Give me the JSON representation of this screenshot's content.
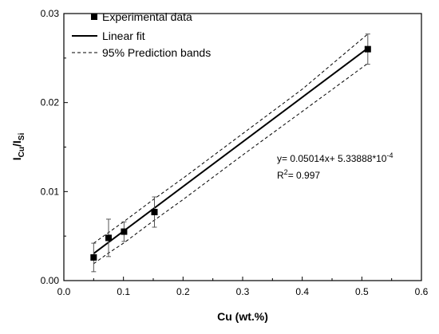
{
  "chart_data": {
    "type": "scatter",
    "xlabel": "Cu (wt.%)",
    "ylabel": {
      "main": "I",
      "sub1": "Cu",
      "sep": "/I",
      "sub2": "Si"
    },
    "xlim": [
      0.0,
      0.6
    ],
    "ylim": [
      0.0,
      0.03
    ],
    "x_ticks": [
      "0.0",
      "0.1",
      "0.2",
      "0.3",
      "0.4",
      "0.5",
      "0.6"
    ],
    "x_tick_values": [
      0.0,
      0.1,
      0.2,
      0.3,
      0.4,
      0.5,
      0.6
    ],
    "y_ticks": [
      "0.00",
      "0.01",
      "0.02",
      "0.03"
    ],
    "y_tick_values": [
      0.0,
      0.01,
      0.02,
      0.03
    ],
    "grid": false,
    "legend_position": "top-left",
    "series": [
      {
        "name": "Experimental data",
        "kind": "points",
        "marker": "square",
        "points": [
          {
            "x": 0.05,
            "y": 0.0026,
            "err": 0.0016
          },
          {
            "x": 0.075,
            "y": 0.0048,
            "err": 0.0021
          },
          {
            "x": 0.101,
            "y": 0.0055,
            "err": 0.0011
          },
          {
            "x": 0.152,
            "y": 0.0077,
            "err": 0.0017
          },
          {
            "x": 0.51,
            "y": 0.026,
            "err": 0.0017
          }
        ]
      },
      {
        "name": "Linear fit",
        "kind": "line",
        "style": "solid",
        "x": [
          0.05,
          0.51
        ],
        "y": [
          0.00304,
          0.02611
        ]
      },
      {
        "name": "95% Prediction bands",
        "kind": "band",
        "style": "dashed",
        "x": [
          0.05,
          0.075,
          0.1,
          0.15,
          0.2,
          0.3,
          0.4,
          0.51
        ],
        "upper": [
          0.0042,
          0.0054,
          0.0066,
          0.0091,
          0.0115,
          0.0165,
          0.0215,
          0.0277
        ],
        "lower": [
          0.0019,
          0.0031,
          0.0042,
          0.0067,
          0.0091,
          0.0141,
          0.019,
          0.0244
        ]
      }
    ],
    "annotation": {
      "line1_prefix": "y= 0.05014x+ 5.33888*10",
      "line1_sup": "-4",
      "line2_prefix": "R",
      "line2_sup": "2",
      "line2_suffix": "= 0.997"
    }
  }
}
